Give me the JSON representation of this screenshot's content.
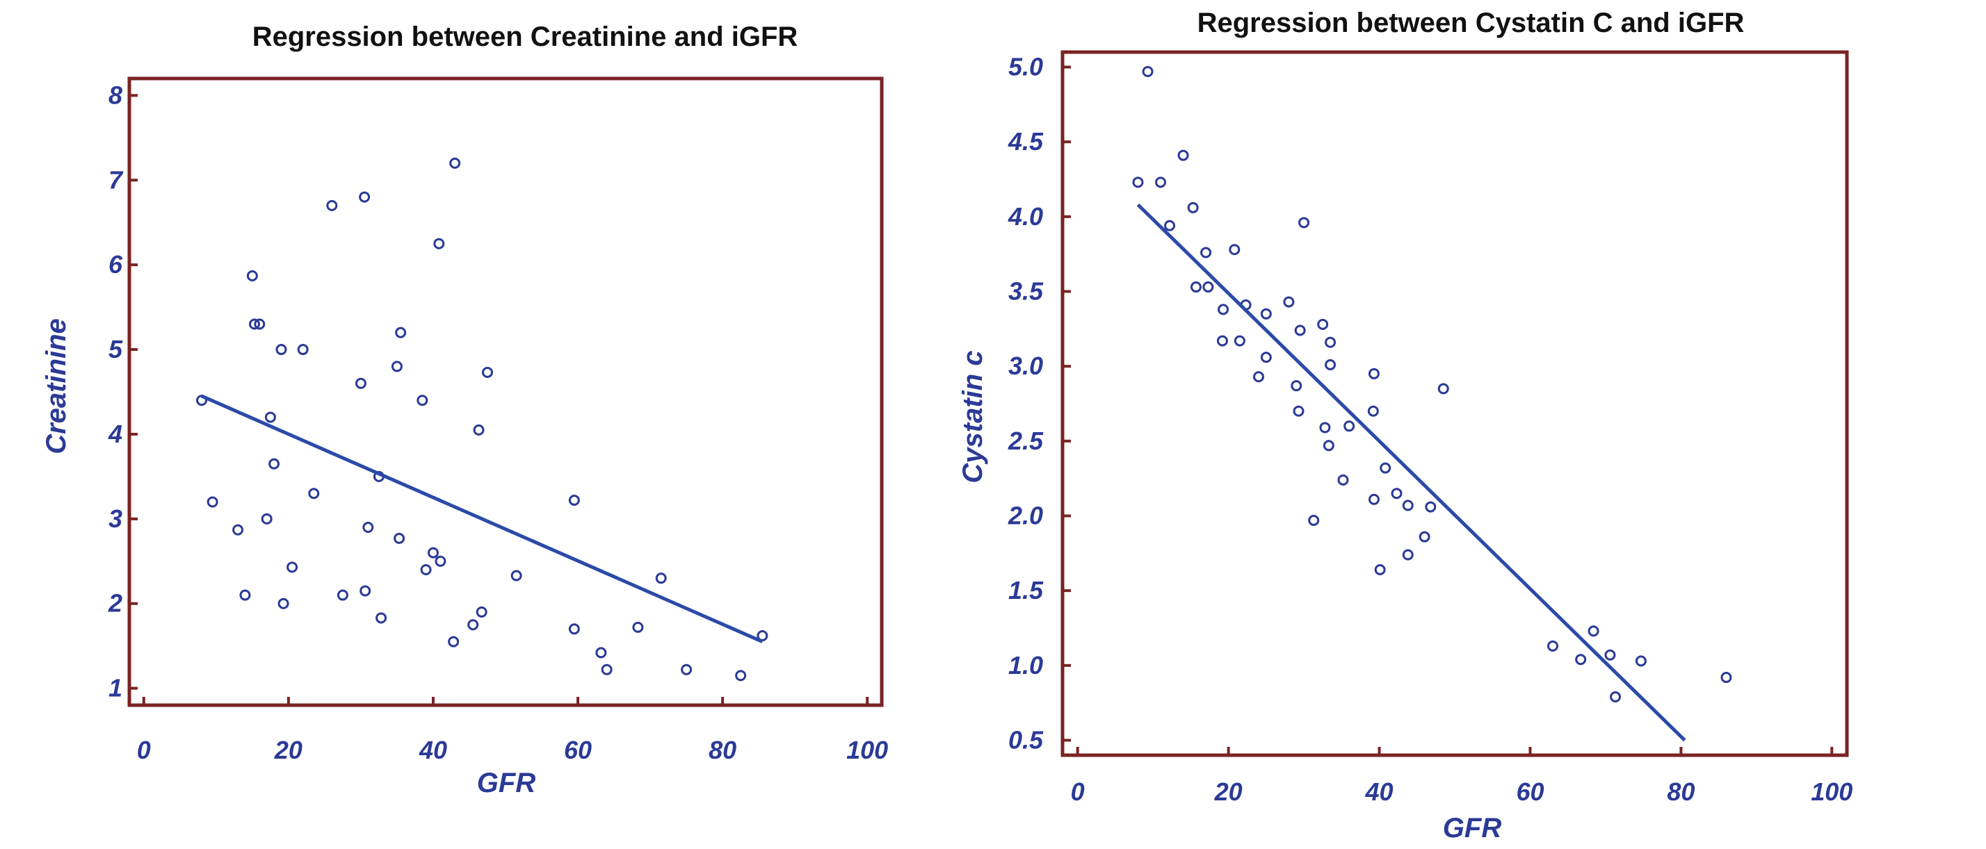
{
  "colors": {
    "frame": "#7a2323",
    "marker": "#2b3a96",
    "line": "#2b4aa8",
    "text_axis": "#2b3a96",
    "title": "#111111"
  },
  "chart_data": [
    {
      "type": "scatter",
      "title": "Regression between Creatinine and iGFR",
      "xlabel": "GFR",
      "ylabel": "Creatinine",
      "xlim": [
        -2,
        102
      ],
      "ylim": [
        0.8,
        8.2
      ],
      "xticks": [
        0,
        20,
        40,
        60,
        80,
        100
      ],
      "yticks": [
        1,
        2,
        3,
        4,
        5,
        6,
        7,
        8
      ],
      "grid": false,
      "points": [
        {
          "x": 8,
          "y": 4.4
        },
        {
          "x": 9.5,
          "y": 3.2
        },
        {
          "x": 13,
          "y": 2.87
        },
        {
          "x": 14,
          "y": 2.1
        },
        {
          "x": 15,
          "y": 5.87
        },
        {
          "x": 15.3,
          "y": 5.3
        },
        {
          "x": 16,
          "y": 5.3
        },
        {
          "x": 17,
          "y": 3.0
        },
        {
          "x": 17.5,
          "y": 4.2
        },
        {
          "x": 18,
          "y": 3.65
        },
        {
          "x": 19,
          "y": 5.0
        },
        {
          "x": 19.3,
          "y": 2.0
        },
        {
          "x": 20.5,
          "y": 2.43
        },
        {
          "x": 22,
          "y": 5.0
        },
        {
          "x": 23.5,
          "y": 3.3
        },
        {
          "x": 26,
          "y": 6.7
        },
        {
          "x": 27.5,
          "y": 2.1
        },
        {
          "x": 30,
          "y": 4.6
        },
        {
          "x": 30.5,
          "y": 6.8
        },
        {
          "x": 30.6,
          "y": 2.15
        },
        {
          "x": 31,
          "y": 2.9
        },
        {
          "x": 32.5,
          "y": 3.5
        },
        {
          "x": 32.8,
          "y": 1.83
        },
        {
          "x": 35,
          "y": 4.8
        },
        {
          "x": 35.5,
          "y": 5.2
        },
        {
          "x": 35.3,
          "y": 2.77
        },
        {
          "x": 38.5,
          "y": 4.4
        },
        {
          "x": 39,
          "y": 2.4
        },
        {
          "x": 40,
          "y": 2.6
        },
        {
          "x": 40.8,
          "y": 6.25
        },
        {
          "x": 41,
          "y": 2.5
        },
        {
          "x": 43,
          "y": 7.2
        },
        {
          "x": 42.8,
          "y": 1.55
        },
        {
          "x": 45.5,
          "y": 1.75
        },
        {
          "x": 46.3,
          "y": 4.05
        },
        {
          "x": 46.7,
          "y": 1.9
        },
        {
          "x": 47.5,
          "y": 4.73
        },
        {
          "x": 51.5,
          "y": 2.33
        },
        {
          "x": 59.5,
          "y": 3.22
        },
        {
          "x": 59.5,
          "y": 1.7
        },
        {
          "x": 63.2,
          "y": 1.42
        },
        {
          "x": 64,
          "y": 1.22
        },
        {
          "x": 68.3,
          "y": 1.72
        },
        {
          "x": 71.5,
          "y": 2.3
        },
        {
          "x": 75,
          "y": 1.22
        },
        {
          "x": 82.5,
          "y": 1.15
        },
        {
          "x": 85.5,
          "y": 1.62
        }
      ],
      "regression": {
        "x": [
          8,
          85.5
        ],
        "y": [
          4.45,
          1.55
        ]
      }
    },
    {
      "type": "scatter",
      "title": "Regression between  Cystatin C and iGFR",
      "xlabel": "GFR",
      "ylabel": "Cystatin c",
      "xlim": [
        -2,
        102
      ],
      "ylim": [
        0.4,
        5.1
      ],
      "xticks": [
        0,
        20,
        40,
        60,
        80,
        100
      ],
      "yticks": [
        "0.5",
        "1.0",
        "1.5",
        "2.0",
        "2.5",
        "3.0",
        "3.5",
        "4.0",
        "4.5",
        "5.0"
      ],
      "grid": false,
      "points": [
        {
          "x": 8,
          "y": 4.23
        },
        {
          "x": 9.3,
          "y": 4.97
        },
        {
          "x": 11,
          "y": 4.23
        },
        {
          "x": 12.2,
          "y": 3.94
        },
        {
          "x": 14,
          "y": 4.41
        },
        {
          "x": 15.3,
          "y": 4.06
        },
        {
          "x": 15.7,
          "y": 3.53
        },
        {
          "x": 17,
          "y": 3.76
        },
        {
          "x": 17.3,
          "y": 3.53
        },
        {
          "x": 19.3,
          "y": 3.38
        },
        {
          "x": 19.2,
          "y": 3.17
        },
        {
          "x": 20.8,
          "y": 3.78
        },
        {
          "x": 21.5,
          "y": 3.17
        },
        {
          "x": 22.3,
          "y": 3.41
        },
        {
          "x": 24,
          "y": 2.93
        },
        {
          "x": 25,
          "y": 3.35
        },
        {
          "x": 25,
          "y": 3.06
        },
        {
          "x": 28,
          "y": 3.43
        },
        {
          "x": 29,
          "y": 2.87
        },
        {
          "x": 29.3,
          "y": 2.7
        },
        {
          "x": 29.5,
          "y": 3.24
        },
        {
          "x": 30,
          "y": 3.96
        },
        {
          "x": 31.3,
          "y": 1.97
        },
        {
          "x": 32.5,
          "y": 3.28
        },
        {
          "x": 32.8,
          "y": 2.59
        },
        {
          "x": 33.5,
          "y": 3.16
        },
        {
          "x": 33.3,
          "y": 2.47
        },
        {
          "x": 33.5,
          "y": 3.01
        },
        {
          "x": 35.2,
          "y": 2.24
        },
        {
          "x": 36,
          "y": 2.6
        },
        {
          "x": 39.3,
          "y": 2.95
        },
        {
          "x": 39.2,
          "y": 2.7
        },
        {
          "x": 39.3,
          "y": 2.11
        },
        {
          "x": 40.1,
          "y": 1.64
        },
        {
          "x": 40.8,
          "y": 2.32
        },
        {
          "x": 42.3,
          "y": 2.15
        },
        {
          "x": 43.8,
          "y": 2.07
        },
        {
          "x": 43.8,
          "y": 1.74
        },
        {
          "x": 46,
          "y": 1.86
        },
        {
          "x": 46.8,
          "y": 2.06
        },
        {
          "x": 48.5,
          "y": 2.85
        },
        {
          "x": 63,
          "y": 1.13
        },
        {
          "x": 66.7,
          "y": 1.04
        },
        {
          "x": 68.4,
          "y": 1.23
        },
        {
          "x": 70.6,
          "y": 1.07
        },
        {
          "x": 71.3,
          "y": 0.79
        },
        {
          "x": 74.7,
          "y": 1.03
        },
        {
          "x": 86,
          "y": 0.92
        }
      ],
      "regression": {
        "x": [
          8,
          80.5
        ],
        "y": [
          4.08,
          0.5
        ]
      }
    }
  ]
}
